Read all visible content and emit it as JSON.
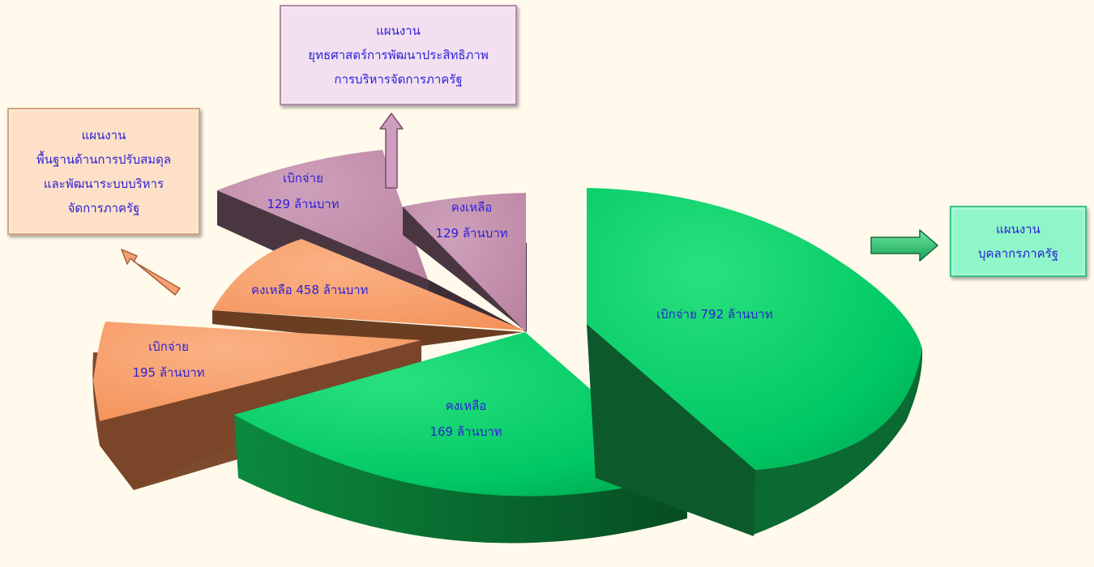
{
  "colors": {
    "background": "#fffaeb",
    "green": "#00c864",
    "orange": "#f7965e",
    "mauve": "#c18aab",
    "label": "#2b1fd6"
  },
  "chart_data": {
    "type": "pie",
    "unit": "ล้านบาท",
    "slices": [
      {
        "plan": "แผนงานบุคลากรภาครัฐ",
        "status": "เบิกจ่าย",
        "value": 792,
        "color": "#00c864"
      },
      {
        "plan": "แผนงานบุคลากรภาครัฐ",
        "status": "คงเหลือ",
        "value": 169,
        "color": "#00c864"
      },
      {
        "plan": "แผนงานพื้นฐานด้านการปรับสมดุลและพัฒนาระบบบริหารจัดการภาครัฐ",
        "status": "เบิกจ่าย",
        "value": 195,
        "color": "#f7965e"
      },
      {
        "plan": "แผนงานพื้นฐานด้านการปรับสมดุลและพัฒนาระบบบริหารจัดการภาครัฐ",
        "status": "คงเหลือ",
        "value": 458,
        "color": "#f7965e"
      },
      {
        "plan": "แผนงานยุทธศาสตร์การพัฒนาประสิทธิภาพการบริหารจัดการภาครัฐ",
        "status": "เบิกจ่าย",
        "value": 129,
        "color": "#c18aab"
      },
      {
        "plan": "แผนงานยุทธศาสตร์การพัฒนาประสิทธิภาพการบริหารจัดการภาครัฐ",
        "status": "คงเหลือ",
        "value": 129,
        "color": "#c18aab"
      }
    ]
  },
  "labels": {
    "green_disbursed": "เบิกจ่าย  792  ล้านบาท",
    "green_remaining_1": "คงเหลือ",
    "green_remaining_2": "169  ล้านบาท",
    "orange_disbursed_1": "เบิกจ่าย",
    "orange_disbursed_2": "195  ล้านบาท",
    "orange_remaining": "คงเหลือ  458  ล้านบาท",
    "mauve_disbursed_1": "เบิกจ่าย",
    "mauve_disbursed_2": "129  ล้านบาท",
    "mauve_remaining_1": "คงเหลือ",
    "mauve_remaining_2": "129  ล้านบาท"
  },
  "boxes": {
    "admin": [
      "แผนงาน",
      "พื้นฐานด้านการปรับสมดุล",
      "และพัฒนาระบบบริหาร",
      "จัดการภาครัฐ"
    ],
    "strategy": [
      "แผนงาน",
      "ยุทธศาสตร์การพัฒนาประสิทธิภาพ",
      "การบริหารจัดการภาครัฐ"
    ],
    "personnel": [
      "แผนงาน",
      "บุคลากรภาครัฐ"
    ]
  }
}
